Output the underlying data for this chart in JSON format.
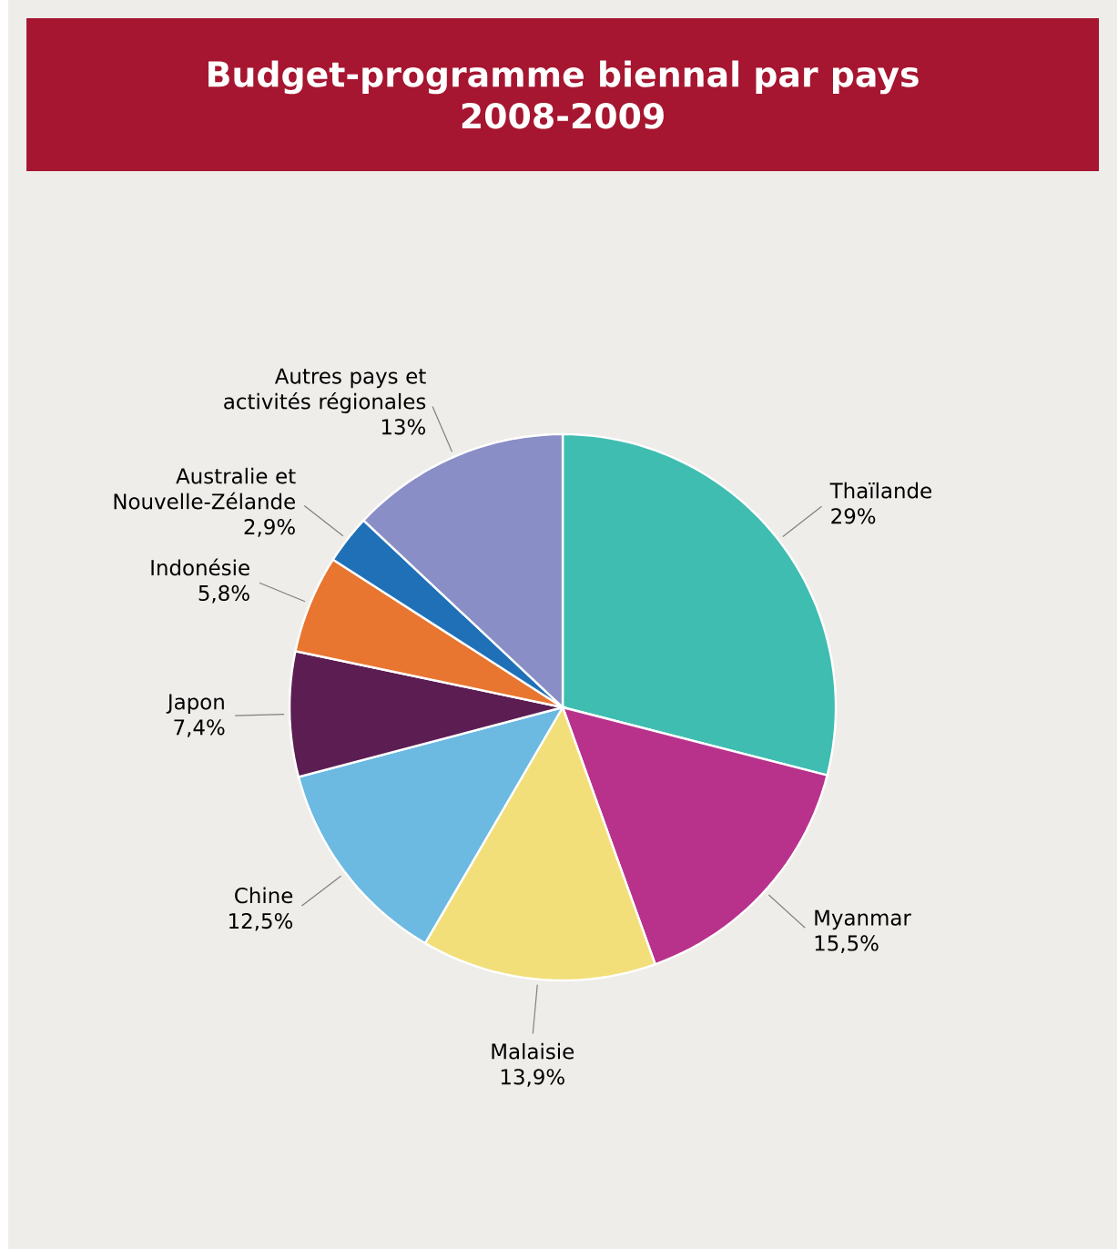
{
  "chart_data": {
    "type": "pie",
    "title": "Budget-programme biennal par pays",
    "subtitle": "2008-2009",
    "categories": [
      "Thaïlande",
      "Myanmar",
      "Malaisie",
      "Chine",
      "Japon",
      "Indonésie",
      "Australie et Nouvelle-Zélande",
      "Autres pays et activités régionales"
    ],
    "values": [
      29,
      15.5,
      13.9,
      12.5,
      7.4,
      5.8,
      2.9,
      13
    ],
    "value_labels": [
      "29%",
      "15,5%",
      "13,9%",
      "12,5%",
      "7,4%",
      "5,8%",
      "2,9%",
      "13%"
    ],
    "colors": [
      "#3fbdb0",
      "#b8328c",
      "#f2df7a",
      "#6cb9e2",
      "#5b1d52",
      "#e87630",
      "#2070b8",
      "#8a8ec6"
    ]
  }
}
